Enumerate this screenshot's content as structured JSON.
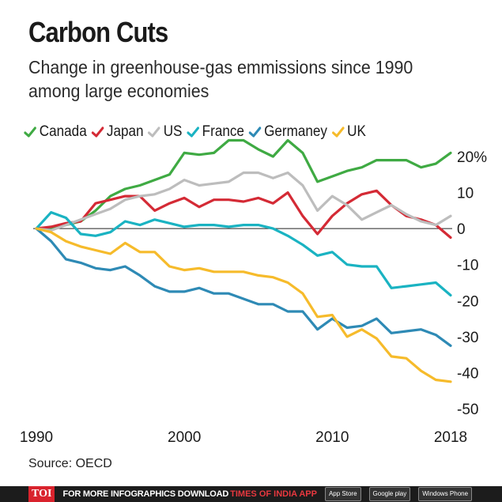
{
  "header": {
    "title": "Carbon Cuts",
    "subtitle": "Change in greenhouse-gas emmissions since 1990 among large economies"
  },
  "source": "Source: OECD",
  "footer": {
    "logo": "TOI",
    "text": "FOR MORE  INFOGRAPHICS DOWNLOAD",
    "brand": "TIMES OF INDIA  APP",
    "badges": [
      "App Store",
      "Google play",
      "Windows Phone"
    ]
  },
  "chart_data": {
    "type": "line",
    "title": "Carbon Cuts",
    "subtitle": "Change in greenhouse-gas emmissions since 1990 among large economies",
    "xlabel": "",
    "ylabel": "",
    "xlim": [
      1990,
      2018
    ],
    "ylim": [
      -50,
      20
    ],
    "x_ticks": [
      {
        "value": 1990,
        "label": "1990"
      },
      {
        "value": 2000,
        "label": "2000"
      },
      {
        "value": 2010,
        "label": "2010"
      },
      {
        "value": 2018,
        "label": "2018"
      }
    ],
    "y_ticks": [
      {
        "value": 20,
        "label": "20%"
      },
      {
        "value": 10,
        "label": "10"
      },
      {
        "value": 0,
        "label": "0"
      },
      {
        "value": -10,
        "label": "-10"
      },
      {
        "value": -20,
        "label": "-20"
      },
      {
        "value": -30,
        "label": "-30"
      },
      {
        "value": -40,
        "label": "-40"
      },
      {
        "value": -50,
        "label": "-50"
      }
    ],
    "x": [
      1990,
      1991,
      1992,
      1993,
      1994,
      1995,
      1996,
      1997,
      1998,
      1999,
      2000,
      2001,
      2002,
      2003,
      2004,
      2005,
      2006,
      2007,
      2008,
      2009,
      2010,
      2011,
      2012,
      2013,
      2014,
      2015,
      2016,
      2017,
      2018
    ],
    "series": [
      {
        "name": "Canada",
        "color": "#3faa43",
        "values": [
          0,
          0,
          1,
          2,
          5,
          9,
          11,
          12,
          13.5,
          15,
          21,
          20.5,
          21,
          24.5,
          24.5,
          22,
          20,
          24.5,
          21,
          13,
          14.5,
          16,
          17,
          19,
          19,
          19,
          17,
          18,
          21
        ]
      },
      {
        "name": "Japan",
        "color": "#d42a35",
        "values": [
          0,
          0.5,
          1.5,
          2,
          7,
          8,
          9,
          9,
          5,
          7,
          8.5,
          6,
          8,
          8,
          7.5,
          8.5,
          7,
          10,
          3.5,
          -1.5,
          3.5,
          7,
          9.5,
          10.5,
          6.5,
          3.5,
          2.5,
          1,
          -2.5
        ]
      },
      {
        "name": "US",
        "color": "#bdbdbd",
        "values": [
          0,
          -0.5,
          1,
          2.5,
          4,
          5.5,
          8,
          9,
          9.5,
          11,
          13.5,
          12,
          12.5,
          13,
          15.5,
          15.5,
          14,
          15.5,
          12,
          5,
          9,
          6.5,
          2.5,
          4.5,
          6.5,
          4,
          2,
          1,
          3.5
        ]
      },
      {
        "name": "France",
        "color": "#1ab3c2",
        "values": [
          0,
          4.5,
          3,
          -1.5,
          -2,
          -1,
          2,
          1,
          2.5,
          1.5,
          0.5,
          1,
          1,
          0.5,
          1,
          1,
          0,
          -2,
          -4.5,
          -7.5,
          -6.5,
          -10,
          -10.5,
          -10.5,
          -16.5,
          -16,
          -15.5,
          -15,
          -18.5
        ]
      },
      {
        "name": "Germaney",
        "color": "#2e8ab5",
        "values": [
          0,
          -3.5,
          -8.5,
          -9.5,
          -11,
          -11.5,
          -10.5,
          -13,
          -16,
          -17.5,
          -17.5,
          -16.5,
          -18,
          -18,
          -19.5,
          -21,
          -21,
          -23,
          -23,
          -28,
          -25,
          -27.5,
          -27,
          -25,
          -29,
          -28.5,
          -28,
          -29.5,
          -32.5
        ]
      },
      {
        "name": "UK",
        "color": "#f6bb2b",
        "values": [
          0,
          -1,
          -3.5,
          -5,
          -6,
          -7,
          -4,
          -6.5,
          -6.5,
          -10.5,
          -11.5,
          -11,
          -12,
          -12,
          -12,
          -13,
          -13.5,
          -15,
          -18,
          -24.5,
          -24,
          -30,
          -28,
          -30.5,
          -35.5,
          -36,
          -39.5,
          -42,
          -42.5
        ]
      }
    ]
  }
}
